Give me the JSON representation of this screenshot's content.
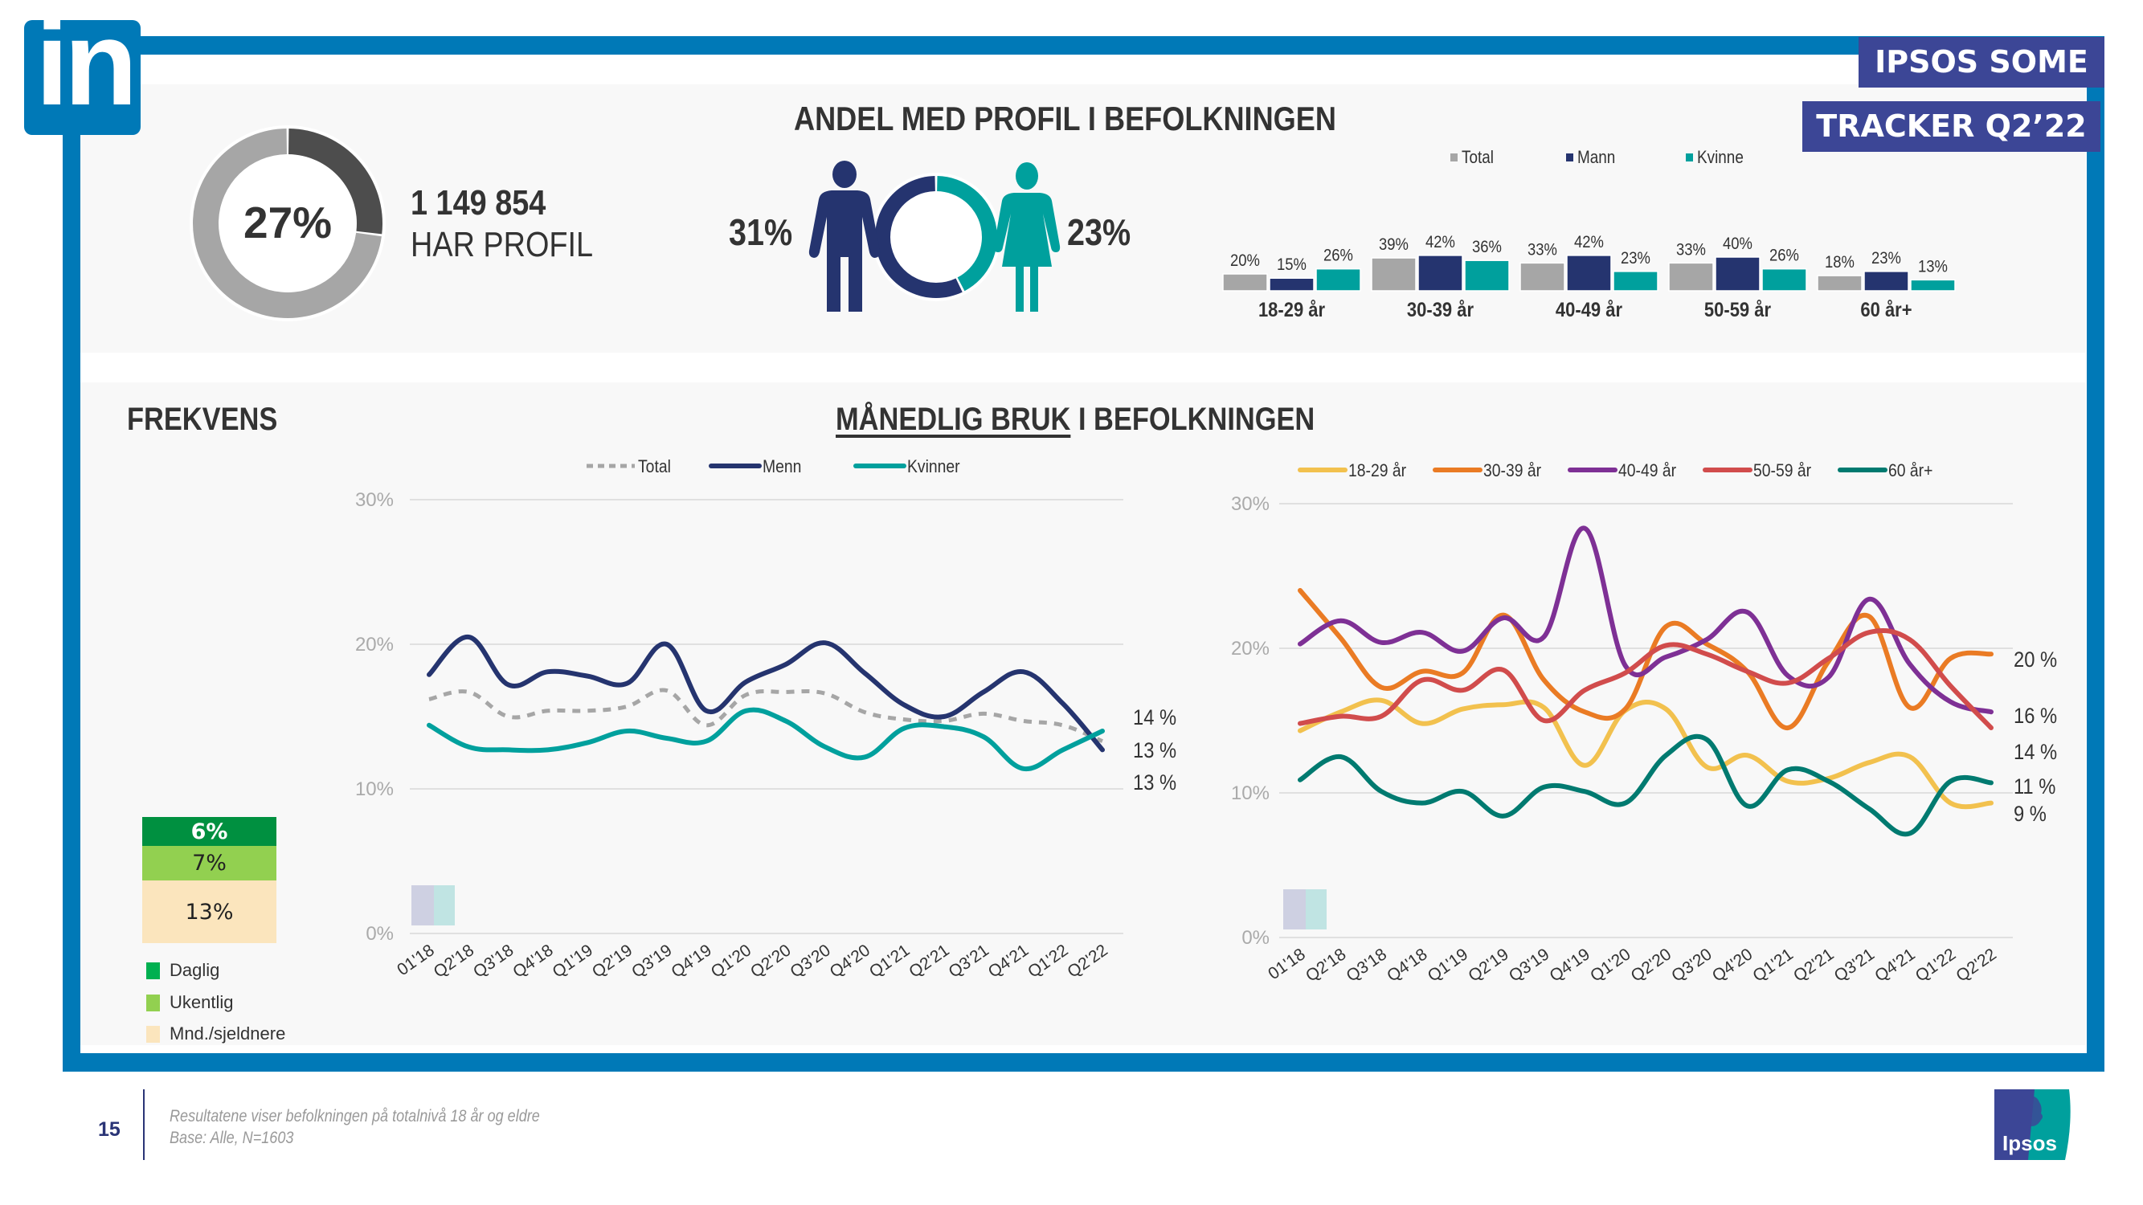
{
  "brand": {
    "logo_text": "in",
    "tag_line1": "IPSOS SOME",
    "tag_line2": "TRACKER Q2’22",
    "ipsos_logo_text": "Ipsos"
  },
  "colors": {
    "frame": "#0079b7",
    "tag": "#3c4696",
    "total": "#a6a6a6",
    "mann": "#25346f",
    "kvinne": "#00a09d",
    "donut_dark": "#4d4d4d",
    "age_18_29": "#f2c14e",
    "age_30_39": "#ea7b24",
    "age_40_49": "#7e3095",
    "age_50_59": "#d14c4c",
    "age_60_plus": "#007a70",
    "daglig": "#009040",
    "ukentlig": "#92d050",
    "mnd": "#fbe5bd"
  },
  "profile": {
    "title": "ANDEL MED PROFIL I BEFOLKNINGEN",
    "total_pct_label": "27%",
    "total_pct": 27,
    "count": "1 149 854",
    "count_label": "HAR PROFIL",
    "mann_pct_label": "31%",
    "kvinne_pct_label": "23%",
    "mann_pct": 31,
    "kvinne_pct": 23
  },
  "frekvens": {
    "title": "FREKVENS",
    "segments": [
      {
        "name": "Daglig",
        "label": "6%",
        "value": 6
      },
      {
        "name": "Ukentlig",
        "label": "7%",
        "value": 7
      },
      {
        "name": "Mnd./sjeldnere",
        "label": "13%",
        "value": 13
      }
    ]
  },
  "monthly": {
    "title_underlined": "MÅNEDLIG BRUK",
    "title_rest": " I BEFOLKNINGEN"
  },
  "footer": {
    "page_number": "15",
    "note_line1": "Resultatene viser befolkningen på totalnivå 18 år og eldre",
    "note_line2": "Base: Alle, N=1603"
  },
  "chart_data": [
    {
      "id": "age-bars",
      "type": "bar",
      "title": "",
      "categories": [
        "18-29 år",
        "30-39 år",
        "40-49 år",
        "50-59 år",
        "60 år+"
      ],
      "series": [
        {
          "name": "Total",
          "values": [
            20,
            39,
            33,
            33,
            18
          ],
          "labels": [
            "20%",
            "39%",
            "33%",
            "33%",
            "18%"
          ]
        },
        {
          "name": "Mann",
          "values": [
            15,
            42,
            42,
            40,
            23
          ],
          "labels": [
            "15%",
            "42%",
            "42%",
            "40%",
            "23%"
          ]
        },
        {
          "name": "Kvinne",
          "values": [
            26,
            36,
            23,
            26,
            13
          ],
          "labels": [
            "26%",
            "36%",
            "23%",
            "26%",
            "13%"
          ]
        }
      ],
      "legend": "top",
      "unit": "%"
    },
    {
      "id": "gender-trend",
      "type": "line",
      "title": "",
      "x": [
        "01'18",
        "Q2'18",
        "Q3'18",
        "Q4'18",
        "Q1'19",
        "Q2'19",
        "Q3'19",
        "Q4'19",
        "Q1'20",
        "Q2'20",
        "Q3'20",
        "Q4'20",
        "Q1'21",
        "Q2'21",
        "Q3'21",
        "Q4'21",
        "Q1'22",
        "Q2'22"
      ],
      "series": [
        {
          "name": "Total",
          "style": "dashed",
          "values": [
            16.2,
            16.7,
            15.0,
            15.4,
            15.4,
            15.7,
            16.8,
            14.4,
            16.5,
            16.7,
            16.6,
            15.3,
            14.8,
            14.7,
            15.2,
            14.7,
            14.4,
            13.3
          ]
        },
        {
          "name": "Menn",
          "style": "solid",
          "values": [
            17.9,
            20.5,
            17.2,
            18.1,
            17.8,
            17.3,
            20.0,
            15.4,
            17.4,
            18.6,
            20.1,
            18.0,
            15.8,
            15.0,
            16.7,
            18.1,
            15.9,
            12.7
          ]
        },
        {
          "name": "Kvinner",
          "style": "solid",
          "values": [
            14.4,
            12.9,
            12.7,
            12.7,
            13.2,
            14.0,
            13.5,
            13.3,
            15.4,
            14.7,
            12.9,
            12.2,
            14.2,
            14.3,
            13.6,
            11.4,
            12.7,
            14.0
          ]
        }
      ],
      "end_labels": [
        "14 %",
        "13 %",
        "13 %"
      ],
      "yticks": [
        "0%",
        "10%",
        "20%",
        "30%"
      ],
      "ylim": [
        0,
        30
      ],
      "grid": true,
      "legend": "top"
    },
    {
      "id": "age-trend",
      "type": "line",
      "title": "",
      "x": [
        "01'18",
        "Q2'18",
        "Q3'18",
        "Q4'18",
        "Q1'19",
        "Q2'19",
        "Q3'19",
        "Q4'19",
        "Q1'20",
        "Q2'20",
        "Q3'20",
        "Q4'20",
        "Q1'21",
        "Q2'21",
        "Q3'21",
        "Q4'21",
        "Q1'22",
        "Q2'22"
      ],
      "series": [
        {
          "name": "18-29 år",
          "values": [
            14.3,
            15.6,
            16.4,
            14.8,
            15.8,
            16.1,
            15.9,
            11.9,
            15.7,
            15.8,
            11.8,
            12.6,
            10.8,
            11.0,
            12.1,
            12.5,
            9.3,
            9.3
          ]
        },
        {
          "name": "30-39 år",
          "values": [
            24.0,
            20.7,
            17.3,
            18.4,
            18.3,
            22.3,
            17.8,
            15.6,
            15.8,
            21.5,
            20.3,
            18.4,
            14.5,
            19.1,
            22.2,
            15.9,
            19.3,
            19.6
          ]
        },
        {
          "name": "40-49 år",
          "values": [
            20.3,
            21.9,
            20.4,
            21.1,
            19.8,
            22.1,
            20.8,
            28.3,
            18.8,
            19.4,
            20.6,
            22.5,
            18.1,
            18.0,
            23.4,
            18.9,
            16.3,
            15.6
          ]
        },
        {
          "name": "50-59 år",
          "values": [
            14.8,
            15.3,
            15.3,
            17.8,
            17.1,
            18.5,
            15.0,
            17.1,
            18.3,
            20.2,
            19.6,
            18.4,
            17.6,
            19.3,
            21.1,
            20.6,
            17.4,
            14.5
          ]
        },
        {
          "name": "60 år+",
          "values": [
            10.9,
            12.5,
            10.1,
            9.3,
            10.1,
            8.4,
            10.4,
            10.1,
            9.3,
            12.6,
            13.7,
            9.1,
            11.6,
            10.8,
            8.9,
            7.2,
            10.8,
            10.7
          ]
        }
      ],
      "end_labels": [
        "20 %",
        "16 %",
        "14 %",
        "11 %",
        "9 %"
      ],
      "yticks": [
        "0%",
        "10%",
        "20%",
        "30%"
      ],
      "ylim": [
        0,
        30
      ],
      "grid": true,
      "legend": "top"
    }
  ]
}
